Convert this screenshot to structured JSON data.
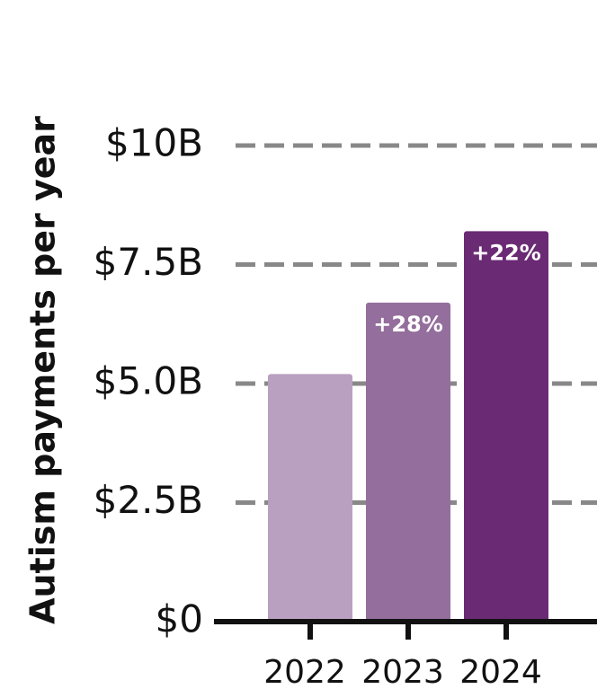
{
  "chart_data": {
    "type": "bar",
    "y_label": "Autism payments per year",
    "categories": [
      "2022",
      "2023",
      "2024"
    ],
    "values": [
      5.2,
      6.7,
      8.2
    ],
    "bar_labels": [
      null,
      "+28%",
      "+22%"
    ],
    "colors": [
      "#b9a0c0",
      "#946e9c",
      "#6a2a74"
    ],
    "ylim": [
      0,
      10
    ],
    "yticks": [
      {
        "value": 0,
        "label": "$0"
      },
      {
        "value": 2.5,
        "label": "$2.5B"
      },
      {
        "value": 5,
        "label": "$5.0B"
      },
      {
        "value": 7.5,
        "label": "$7.5B"
      },
      {
        "value": 10,
        "label": "$10B"
      }
    ],
    "grid": true
  }
}
